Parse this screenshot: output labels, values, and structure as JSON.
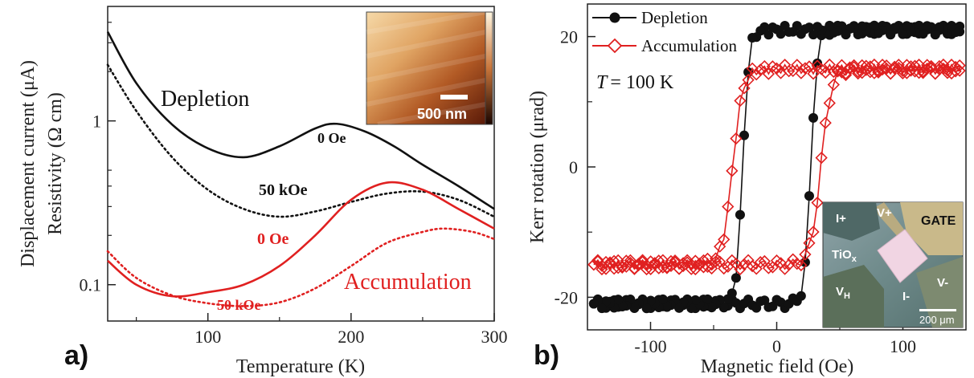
{
  "chart_data": [
    {
      "panel_label": "a)",
      "type": "line",
      "xlabel": "Temperature (K)",
      "ylabel_outer": "Displacement current (μA)",
      "ylabel_inner": "Resistivity (Ω cm)",
      "x_ticks": [
        "100",
        "200",
        "300"
      ],
      "y_ticks": [
        "1",
        "0.1"
      ],
      "xlim": [
        30,
        300
      ],
      "ylim": [
        0.06,
        5
      ],
      "y_scale": "log",
      "annotations": {
        "depletion": "Depletion",
        "accumulation": "Accumulation",
        "black_0": "0 Oe",
        "black_50": "50 kOe",
        "red_0": "0 Oe",
        "red_50": "50 kOe"
      },
      "inset": {
        "scale_bar": "500 nm"
      },
      "series": [
        {
          "color": "#111111",
          "style": "solid",
          "x": [
            30,
            50,
            75,
            100,
            125,
            150,
            175,
            190,
            210,
            230,
            250,
            275,
            300
          ],
          "y": [
            3.5,
            1.7,
            0.95,
            0.68,
            0.6,
            0.7,
            0.9,
            0.96,
            0.86,
            0.7,
            0.54,
            0.4,
            0.29
          ]
        },
        {
          "color": "#111111",
          "style": "dotted",
          "x": [
            30,
            50,
            75,
            100,
            125,
            150,
            175,
            200,
            225,
            250,
            275,
            300
          ],
          "y": [
            2.2,
            1.15,
            0.6,
            0.38,
            0.29,
            0.26,
            0.28,
            0.32,
            0.36,
            0.37,
            0.33,
            0.26
          ]
        },
        {
          "color": "#e02020",
          "style": "solid",
          "x": [
            30,
            50,
            75,
            100,
            125,
            150,
            175,
            200,
            225,
            250,
            275,
            300
          ],
          "y": [
            0.14,
            0.1,
            0.085,
            0.09,
            0.1,
            0.13,
            0.2,
            0.33,
            0.42,
            0.38,
            0.29,
            0.22
          ]
        },
        {
          "color": "#e02020",
          "style": "dotted",
          "x": [
            30,
            50,
            75,
            100,
            125,
            150,
            175,
            200,
            225,
            250,
            265,
            285,
            300
          ],
          "y": [
            0.16,
            0.11,
            0.086,
            0.077,
            0.074,
            0.078,
            0.095,
            0.13,
            0.18,
            0.21,
            0.22,
            0.21,
            0.19
          ]
        }
      ]
    },
    {
      "panel_label": "b)",
      "type": "line",
      "xlabel": "Magnetic field (Oe)",
      "ylabel": "Kerr rotation (μrad)",
      "x_ticks": [
        "-100",
        "0",
        "100"
      ],
      "y_ticks": [
        "20",
        "0",
        "-20"
      ],
      "xlim": [
        -150,
        150
      ],
      "ylim": [
        -25,
        25
      ],
      "temperature_label": "= 100 K",
      "temperature_symbol": "T",
      "legend": {
        "placement": "top-left"
      },
      "inset": {
        "labels": {
          "i_plus": "I+",
          "v_plus": "V+",
          "gate": "GATE",
          "tiox": "TiO",
          "tiox_sub": "x",
          "vh": "V",
          "vh_sub": "H",
          "i_minus": "I-",
          "v_minus": "V-",
          "scale_bar": "200 μm"
        }
      },
      "series": [
        {
          "name": "Depletion",
          "color": "#111111",
          "marker": "filled-circle",
          "coercive_field": 27,
          "saturation": 21,
          "curve_width": 5
        },
        {
          "name": "Accumulation",
          "color": "#e02020",
          "marker": "open-diamond",
          "coercive_field": 35,
          "saturation": 15,
          "curve_width": 8
        }
      ]
    }
  ]
}
